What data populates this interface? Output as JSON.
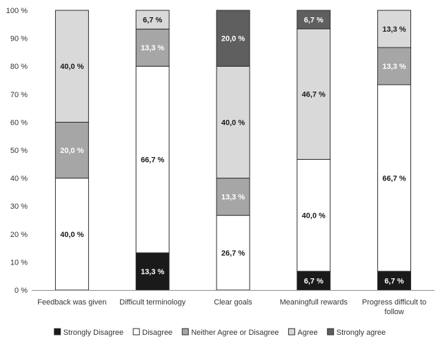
{
  "chart_data": {
    "type": "bar",
    "stacked": true,
    "percent": true,
    "title": "",
    "xlabel": "",
    "ylabel": "",
    "ylim": [
      0,
      100
    ],
    "yticks": [
      0,
      10,
      20,
      30,
      40,
      50,
      60,
      70,
      80,
      90,
      100
    ],
    "ytick_labels": [
      "0 %",
      "10 %",
      "20 %",
      "30 %",
      "40 %",
      "50 %",
      "60 %",
      "70 %",
      "80 %",
      "90 %",
      "100 %"
    ],
    "grid": false,
    "legend_position": "bottom",
    "categories": [
      [
        "Feedback was given"
      ],
      [
        "Difficult terminology"
      ],
      [
        "Clear goals"
      ],
      [
        "Meaningfull rewards"
      ],
      [
        "Progress difficult to",
        "follow"
      ]
    ],
    "series": [
      {
        "name": "Strongly Disagree",
        "color": "#1a1a1a",
        "text_color": "#ffffff",
        "values": [
          0,
          13.3,
          0,
          6.7,
          6.7
        ],
        "labels": [
          "",
          "13,3 %",
          "",
          "6,7 %",
          "6,7 %"
        ]
      },
      {
        "name": "Disagree",
        "color": "#ffffff",
        "text_color": "#1a1a1a",
        "values": [
          40.0,
          66.7,
          26.7,
          40.0,
          66.7
        ],
        "labels": [
          "40,0 %",
          "66,7 %",
          "26,7 %",
          "40,0 %",
          "66,7 %"
        ]
      },
      {
        "name": "Neither Agree or Disagree",
        "color": "#a6a6a6",
        "text_color": "#ffffff",
        "values": [
          20.0,
          13.3,
          13.3,
          0,
          13.3
        ],
        "labels": [
          "20,0 %",
          "13,3 %",
          "13,3 %",
          "",
          "13,3 %"
        ]
      },
      {
        "name": "Agree",
        "color": "#d9d9d9",
        "text_color": "#1a1a1a",
        "values": [
          40.0,
          6.7,
          40.0,
          46.7,
          13.3
        ],
        "labels": [
          "40,0 %",
          "6,7 %",
          "40,0 %",
          "46,7 %",
          "13,3 %"
        ]
      },
      {
        "name": "Strongly agree",
        "color": "#5f5f5f",
        "text_color": "#ffffff",
        "values": [
          0,
          0,
          20.0,
          6.7,
          0
        ],
        "labels": [
          "",
          "",
          "20,0 %",
          "6,7 %",
          ""
        ]
      }
    ]
  }
}
